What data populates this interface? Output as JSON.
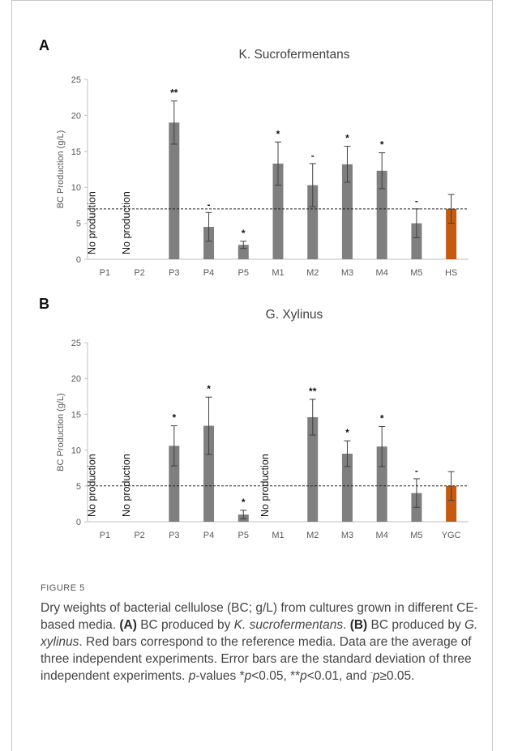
{
  "chart_data": [
    {
      "panel": "A",
      "type": "bar",
      "title": "K. Sucrofermentans",
      "ylabel": "BC Production (g/L)",
      "xlabel": "",
      "ylim": [
        0,
        25
      ],
      "yticks": [
        0,
        5,
        10,
        15,
        20,
        25
      ],
      "grid": false,
      "categories": [
        "P1",
        "P2",
        "P3",
        "P4",
        "P5",
        "M1",
        "M2",
        "M3",
        "M4",
        "M5",
        "HS"
      ],
      "values": [
        null,
        null,
        19.0,
        4.5,
        2.0,
        13.3,
        10.3,
        13.2,
        12.3,
        5.0,
        7.0
      ],
      "errors": [
        null,
        null,
        3.0,
        2.0,
        0.5,
        3.0,
        3.0,
        2.5,
        2.5,
        2.0,
        2.0
      ],
      "significance": [
        "",
        "",
        "**",
        "-",
        "*",
        "*",
        "-",
        "*",
        "*",
        "-",
        ""
      ],
      "no_production_label": "No production",
      "reference_line": 7,
      "bar_color": "#7f7f7f",
      "reference_color": "#c55a11"
    },
    {
      "panel": "B",
      "type": "bar",
      "title": "G. Xylinus",
      "ylabel": "BC Production (g/L)",
      "xlabel": "",
      "ylim": [
        0,
        25
      ],
      "yticks": [
        0,
        5,
        10,
        15,
        20,
        25
      ],
      "grid": false,
      "categories": [
        "P1",
        "P2",
        "P3",
        "P4",
        "P5",
        "M1",
        "M2",
        "M3",
        "M4",
        "M5",
        "YGC"
      ],
      "values": [
        null,
        null,
        10.6,
        13.4,
        1.0,
        null,
        14.6,
        9.5,
        10.5,
        4.0,
        5.0
      ],
      "errors": [
        null,
        null,
        2.8,
        4.0,
        0.6,
        null,
        2.5,
        1.8,
        2.8,
        2.0,
        2.0
      ],
      "significance": [
        "",
        "",
        "*",
        "*",
        "*",
        "",
        "**",
        "*",
        "*",
        "-",
        ""
      ],
      "no_production_label": "No production",
      "reference_line": 5,
      "bar_color": "#7f7f7f",
      "reference_color": "#c55a11"
    }
  ],
  "figure": {
    "label": "FIGURE 5",
    "caption": {
      "t1": "Dry weights of bacterial cellulose (BC; g/L) from cultures grown in different CE-based media. ",
      "a_tag": "(A)",
      "t2": " BC produced by ",
      "a_species": "K. sucrofermentans",
      "t3": ". ",
      "b_tag": "(B)",
      "t4": " BC produced by ",
      "b_species": "G. xylinus",
      "t5": ". Red bars correspond to the reference media. Data are the average of three independent experiments. Error bars are the standard deviation of three independent experiments. ",
      "p1": "p",
      "t6": "-values *",
      "p2": "p",
      "t7": "<0.05, **",
      "p3": "p",
      "t8": "<0.01, and ",
      "sup_minus": "-",
      "p4": "p",
      "t9": "≥0.05."
    }
  }
}
